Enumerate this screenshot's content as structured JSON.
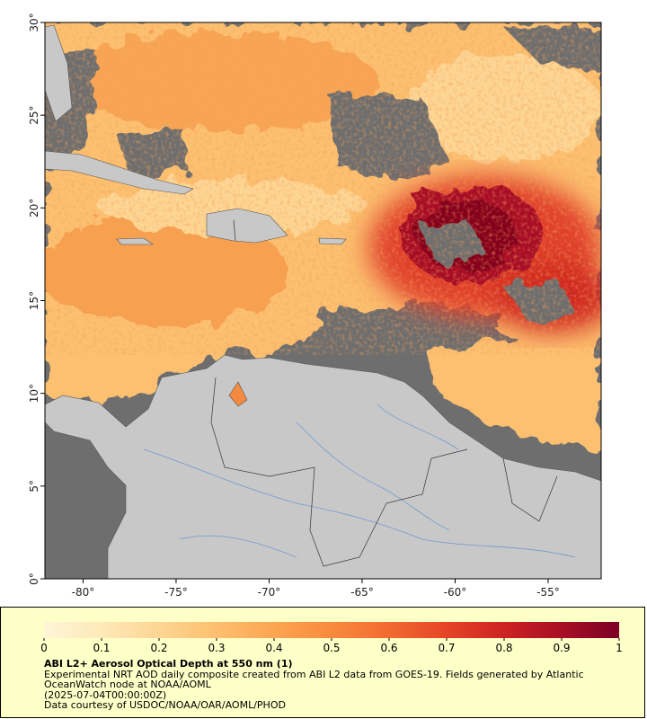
{
  "map": {
    "xlim": [
      -82.05,
      -52.15
    ],
    "ylim": [
      0,
      30
    ],
    "xticks": [
      {
        "value": -80,
        "label": "-80°"
      },
      {
        "value": -75,
        "label": "-75°"
      },
      {
        "value": -70,
        "label": "-70°"
      },
      {
        "value": -65,
        "label": "-65°"
      },
      {
        "value": -60,
        "label": "-60°"
      },
      {
        "value": -55,
        "label": "-55°"
      }
    ],
    "yticks": [
      {
        "value": 0,
        "label": "0°"
      },
      {
        "value": 5,
        "label": "5°"
      },
      {
        "value": 10,
        "label": "10°"
      },
      {
        "value": 15,
        "label": "15°"
      },
      {
        "value": 20,
        "label": "20°"
      },
      {
        "value": 25,
        "label": "25°"
      },
      {
        "value": 30,
        "label": "30°"
      }
    ]
  },
  "colorbar": {
    "lim": [
      0,
      1
    ],
    "ticks": [
      0,
      0.1,
      0.2,
      0.3,
      0.4,
      0.5,
      0.6,
      0.7,
      0.8,
      0.9,
      1
    ],
    "colors": [
      "#fff5d8",
      "#fee9b8",
      "#fdd594",
      "#fdbf6f",
      "#fca552",
      "#f98a3e",
      "#f26a30",
      "#e54526",
      "#cc2223",
      "#a80f25",
      "#7d0025"
    ]
  },
  "caption": {
    "title": "ABI L2+ Aerosol Optical Depth at 550 nm (1)",
    "description": "Experimental NRT AOD daily composite created from ABI L2 data from GOES-19. Fields generated by Atlantic OceanWatch node at NOAA/AOML",
    "time": "(2025-07-04T00:00:00Z)",
    "credit": "Data courtesy of USDOC/NOAA/OAR/AOML/PHOD"
  }
}
